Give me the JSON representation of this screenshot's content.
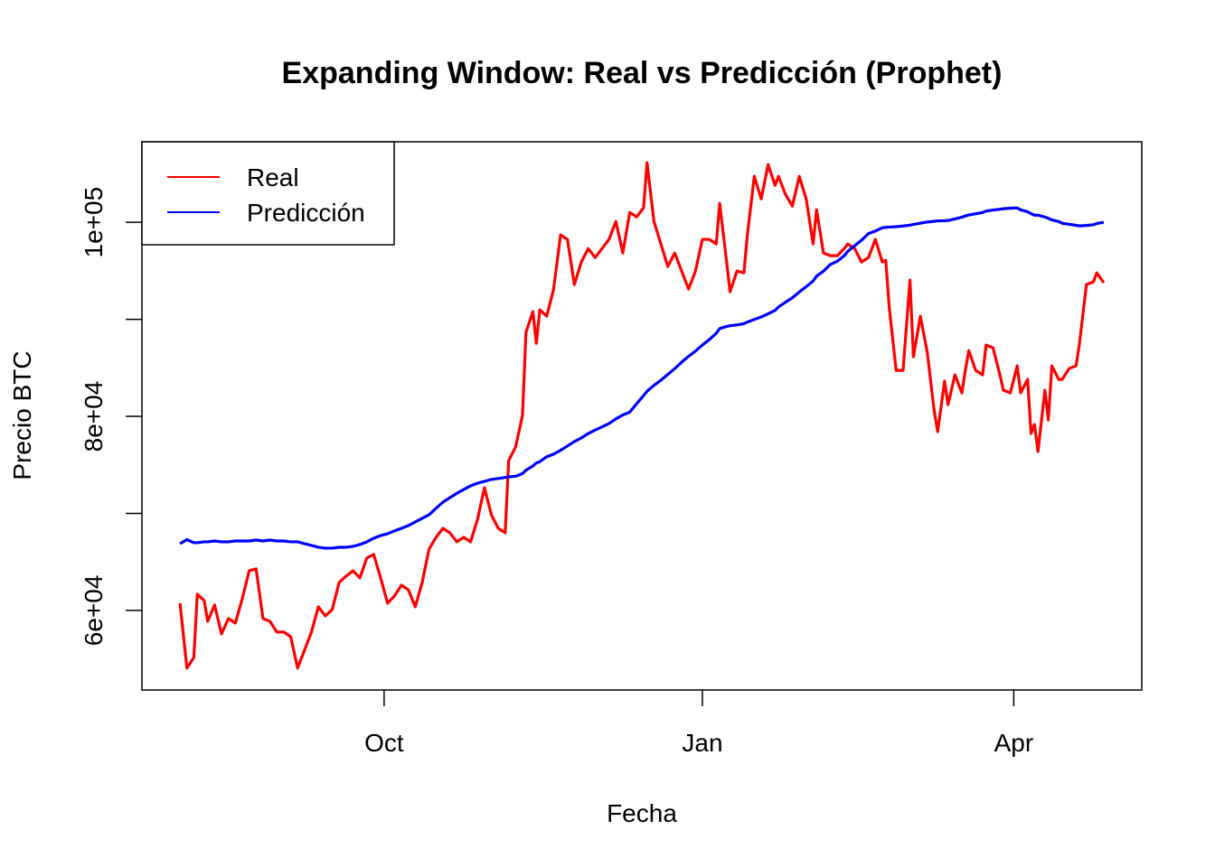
{
  "chart_data": {
    "type": "line",
    "title": "Expanding Window: Real vs Predicción (Prophet)",
    "x_label": "Fecha",
    "y_label": "Precio BTC",
    "legend": "top-left",
    "xlim": [
      -70,
      219
    ],
    "xticks": [
      {
        "value": 0,
        "label": "Oct"
      },
      {
        "value": 92,
        "label": "Jan"
      },
      {
        "value": 182,
        "label": "Apr"
      }
    ],
    "ylim": [
      51800,
      108300
    ],
    "yticks": [
      {
        "value": 60000,
        "label": "6e+04"
      },
      {
        "value": 70000,
        "label": null
      },
      {
        "value": 80000,
        "label": "8e+04"
      },
      {
        "value": 90000,
        "label": null
      },
      {
        "value": 100000,
        "label": "1e+05"
      }
    ],
    "x": [
      -59,
      -57,
      -55,
      -54,
      -52,
      -51,
      -49,
      -47,
      -45,
      -43,
      -41,
      -39,
      -37,
      -35,
      -33,
      -31,
      -29,
      -27,
      -25,
      -23,
      -21,
      -19,
      -17,
      -15,
      -13,
      -11,
      -9,
      -7,
      -5,
      -3,
      -1,
      1,
      3,
      5,
      7,
      9,
      11,
      13,
      15,
      17,
      19,
      21,
      23,
      25,
      27,
      29,
      31,
      33,
      35,
      36,
      38,
      40,
      41,
      43,
      44,
      45,
      47,
      49,
      51,
      53,
      55,
      57,
      59,
      61,
      63,
      65,
      67,
      69,
      71,
      73,
      75,
      76,
      78,
      80,
      82,
      84,
      86,
      88,
      90,
      92,
      94,
      96,
      97,
      99,
      100,
      102,
      104,
      105,
      107,
      109,
      111,
      113,
      114,
      116,
      118,
      120,
      122,
      124,
      125,
      127,
      129,
      131,
      133,
      134,
      136,
      138,
      140,
      142,
      144,
      145,
      146,
      148,
      150,
      152,
      153,
      155,
      157,
      159,
      160,
      162,
      163,
      165,
      167,
      168,
      169,
      171,
      173,
      174,
      176,
      178,
      179,
      181,
      183,
      184,
      186,
      187,
      188,
      189,
      191,
      192,
      193,
      195,
      196,
      198,
      200,
      201,
      203,
      205,
      206,
      208
    ],
    "series": [
      {
        "name": "Real",
        "color": "#ff0000",
        "values": [
          60744,
          54050,
          55160,
          61670,
          61020,
          58880,
          60560,
          57580,
          59160,
          58700,
          61210,
          64090,
          64280,
          59160,
          58880,
          57770,
          57770,
          57300,
          54050,
          55910,
          57770,
          60370,
          59440,
          60090,
          62880,
          63530,
          64090,
          63350,
          65400,
          65770,
          63350,
          60740,
          61490,
          62600,
          62140,
          60370,
          62880,
          66330,
          67530,
          68460,
          68000,
          67070,
          67530,
          67070,
          69390,
          72650,
          69860,
          68460,
          68000,
          75440,
          76840,
          80090,
          88650,
          90790,
          87530,
          90980,
          90330,
          93120,
          98700,
          98240,
          93580,
          95910,
          97300,
          96370,
          97300,
          98240,
          100090,
          96840,
          101020,
          100560,
          101490,
          106140,
          100090,
          97770,
          95440,
          96840,
          94980,
          93120,
          94980,
          98240,
          98240,
          97770,
          101950,
          95910,
          92840,
          94980,
          94790,
          98700,
          104740,
          102420,
          105950,
          103810,
          104740,
          102880,
          101670,
          104740,
          102420,
          97770,
          101300,
          96840,
          96560,
          96560,
          97300,
          97770,
          97300,
          95910,
          96370,
          98240,
          95910,
          96090,
          91260,
          84740,
          84740,
          94050,
          86140,
          90330,
          86610,
          80560,
          78420,
          83630,
          81210,
          84280,
          82420,
          84740,
          86790,
          84740,
          84280,
          87350,
          87070,
          84280,
          82700,
          82420,
          85210,
          82420,
          83810,
          78230,
          79160,
          76370,
          82700,
          79630,
          85210,
          83810,
          83810,
          84930,
          85210,
          87530,
          93580,
          93860,
          94790,
          93770
        ]
      },
      {
        "name": "Predicción",
        "color": "#0000ff",
        "values": [
          66880,
          67300,
          66980,
          66980,
          67070,
          67070,
          67160,
          67070,
          67070,
          67160,
          67160,
          67160,
          67250,
          67160,
          67250,
          67160,
          67160,
          67070,
          67070,
          66880,
          66700,
          66510,
          66420,
          66420,
          66510,
          66510,
          66600,
          66790,
          67070,
          67440,
          67720,
          67900,
          68200,
          68460,
          68740,
          69120,
          69490,
          69860,
          70520,
          71160,
          71620,
          72070,
          72460,
          72840,
          73120,
          73300,
          73500,
          73600,
          73700,
          73770,
          73830,
          74100,
          74450,
          74880,
          75200,
          75330,
          75840,
          76110,
          76500,
          76950,
          77400,
          77780,
          78230,
          78590,
          78920,
          79260,
          79740,
          80140,
          80440,
          81310,
          82140,
          82590,
          83200,
          83720,
          84320,
          84920,
          85590,
          86180,
          86730,
          87350,
          87910,
          88560,
          89050,
          89270,
          89340,
          89430,
          89550,
          89720,
          89990,
          90250,
          90570,
          90920,
          91280,
          91760,
          92220,
          92820,
          93370,
          93940,
          94450,
          94970,
          95660,
          95990,
          96560,
          97000,
          97580,
          98150,
          98840,
          99100,
          99440,
          99480,
          99510,
          99550,
          99620,
          99710,
          99790,
          99910,
          100030,
          100110,
          100150,
          100170,
          100190,
          100350,
          100530,
          100660,
          100750,
          100880,
          101010,
          101160,
          101260,
          101350,
          101400,
          101460,
          101480,
          101280,
          101090,
          100890,
          100740,
          100740,
          100540,
          100410,
          100250,
          100080,
          99900,
          99800,
          99690,
          99630,
          99680,
          99750,
          99880,
          100000
        ]
      }
    ]
  }
}
